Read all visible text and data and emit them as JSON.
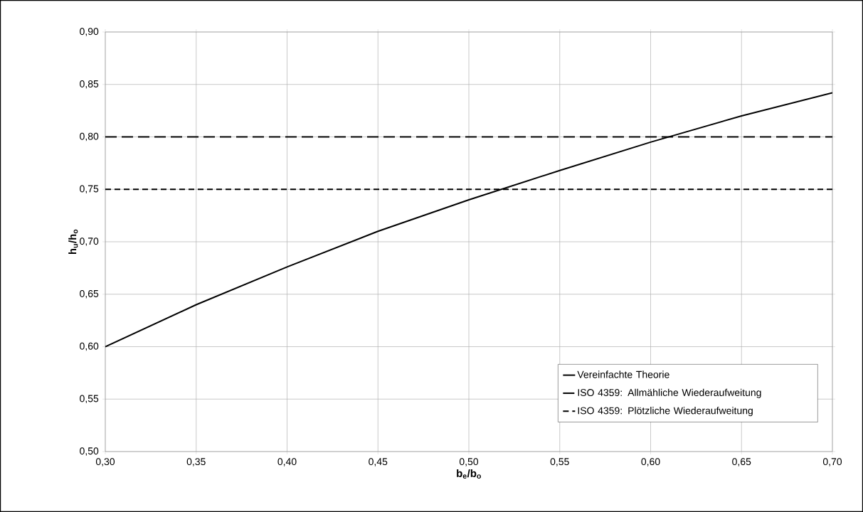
{
  "chart_data": {
    "type": "line",
    "xlabel": "b$_{e}$/b$_{o}$",
    "ylabel": "h$_{u}$/h$_{o}$",
    "xlim": [
      0.3,
      0.7
    ],
    "ylim": [
      0.5,
      0.9
    ],
    "xticks": [
      {
        "value": 0.3,
        "label": "0,30"
      },
      {
        "value": 0.35,
        "label": "0,35"
      },
      {
        "value": 0.4,
        "label": "0,40"
      },
      {
        "value": 0.45,
        "label": "0,45"
      },
      {
        "value": 0.5,
        "label": "0,50"
      },
      {
        "value": 0.55,
        "label": "0,55"
      },
      {
        "value": 0.6,
        "label": "0,60"
      },
      {
        "value": 0.65,
        "label": "0,65"
      },
      {
        "value": 0.7,
        "label": "0,70"
      }
    ],
    "yticks": [
      {
        "value": 0.5,
        "label": "0,50"
      },
      {
        "value": 0.55,
        "label": "0,55"
      },
      {
        "value": 0.6,
        "label": "0,60"
      },
      {
        "value": 0.65,
        "label": "0,65"
      },
      {
        "value": 0.7,
        "label": "0,70"
      },
      {
        "value": 0.75,
        "label": "0,75"
      },
      {
        "value": 0.8,
        "label": "0,80"
      },
      {
        "value": 0.85,
        "label": "0,85"
      },
      {
        "value": 0.9,
        "label": "0,90"
      }
    ],
    "grid": true,
    "legend": "bottom right",
    "marker": "none",
    "series": [
      {
        "name": "Vereinfachte Theorie",
        "color": "#000000",
        "line_style": "solid",
        "x": [
          0.3,
          0.35,
          0.4,
          0.45,
          0.5,
          0.55,
          0.6,
          0.65,
          0.7
        ],
        "values": [
          0.6,
          0.64,
          0.676,
          0.71,
          0.74,
          0.768,
          0.795,
          0.82,
          0.842
        ]
      },
      {
        "name": "ISO 4359: Allmähliche Wiederaufweitung",
        "color": "#000000",
        "line_style": "dashed",
        "x": [
          0.3,
          0.7
        ],
        "values": [
          0.8,
          0.8
        ]
      },
      {
        "name": "ISO 4359: Plötzliche Wiederaufweitung",
        "color": "#000000",
        "line_style": "dashed",
        "x": [
          0.3,
          0.7
        ],
        "values": [
          0.75,
          0.75
        ]
      }
    ]
  }
}
